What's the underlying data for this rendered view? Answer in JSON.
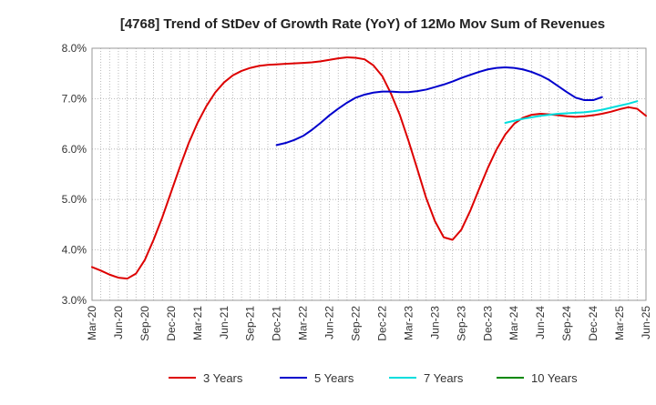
{
  "chart_data": {
    "type": "line",
    "title": "[4768]  Trend of StDev of Growth Rate (YoY) of 12Mo Mov Sum of Revenues",
    "xlabel": "",
    "ylabel": "",
    "ylim": [
      3.0,
      8.0
    ],
    "y_ticks": [
      3.0,
      4.0,
      5.0,
      6.0,
      7.0,
      8.0
    ],
    "y_tick_labels": [
      "3.0%",
      "4.0%",
      "5.0%",
      "6.0%",
      "7.0%",
      "8.0%"
    ],
    "x_tick_labels": [
      "Mar-20",
      "Jun-20",
      "Sep-20",
      "Dec-20",
      "Mar-21",
      "Jun-21",
      "Sep-21",
      "Dec-21",
      "Mar-22",
      "Jun-22",
      "Sep-22",
      "Dec-22",
      "Mar-23",
      "Jun-23",
      "Sep-23",
      "Dec-23",
      "Mar-24",
      "Jun-24",
      "Sep-24",
      "Dec-24",
      "Mar-25",
      "Jun-25"
    ],
    "legend_position": "bottom",
    "grid": true,
    "series": [
      {
        "name": "3 Years",
        "color": "#dd0000",
        "start_month_index": 0,
        "values": [
          3.66,
          3.59,
          3.51,
          3.45,
          3.43,
          3.53,
          3.8,
          4.2,
          4.65,
          5.15,
          5.65,
          6.12,
          6.52,
          6.85,
          7.12,
          7.32,
          7.46,
          7.55,
          7.61,
          7.65,
          7.67,
          7.68,
          7.69,
          7.7,
          7.71,
          7.72,
          7.74,
          7.77,
          7.8,
          7.82,
          7.81,
          7.78,
          7.66,
          7.45,
          7.1,
          6.68,
          6.16,
          5.6,
          5.03,
          4.57,
          4.25,
          4.2,
          4.4,
          4.77,
          5.2,
          5.62,
          5.99,
          6.29,
          6.5,
          6.62,
          6.68,
          6.7,
          6.69,
          6.67,
          6.65,
          6.64,
          6.65,
          6.67,
          6.7,
          6.74,
          6.79,
          6.83,
          6.8,
          6.66
        ]
      },
      {
        "name": "5 Years",
        "color": "#0000cc",
        "start_month_index": 21,
        "values": [
          6.08,
          6.12,
          6.18,
          6.26,
          6.38,
          6.52,
          6.67,
          6.8,
          6.92,
          7.02,
          7.08,
          7.12,
          7.14,
          7.14,
          7.13,
          7.13,
          7.15,
          7.18,
          7.23,
          7.28,
          7.34,
          7.41,
          7.47,
          7.53,
          7.58,
          7.61,
          7.62,
          7.61,
          7.58,
          7.53,
          7.46,
          7.37,
          7.25,
          7.13,
          7.02,
          6.97,
          6.97,
          7.03
        ]
      },
      {
        "name": "7 Years",
        "color": "#00dddd",
        "start_month_index": 47,
        "values": [
          6.52,
          6.56,
          6.6,
          6.63,
          6.66,
          6.68,
          6.7,
          6.71,
          6.72,
          6.73,
          6.75,
          6.78,
          6.82,
          6.86,
          6.9,
          6.95
        ]
      },
      {
        "name": "10 Years",
        "color": "#008800",
        "start_month_index": 0,
        "values": []
      }
    ]
  }
}
